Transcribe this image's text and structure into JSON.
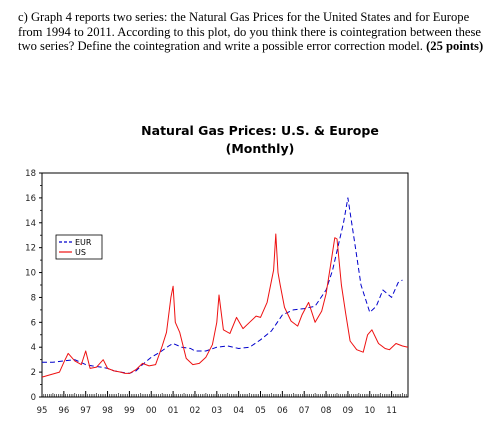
{
  "question": {
    "label": "c)",
    "text": "Graph 4 reports two series: the Natural Gas Prices for the United States and for Europe from 1994 to 2011. According to this plot, do you think there is cointegration between these two series? Define the cointegration and write a possible error correction model.",
    "points": "(25 points)"
  },
  "chart_data": {
    "type": "line",
    "title": "Natural Gas Prices: U.S. & Europe",
    "subtitle": "(Monthly)",
    "xlabel": "",
    "ylabel": "",
    "x_tick_labels": [
      "95",
      "96",
      "97",
      "98",
      "99",
      "00",
      "01",
      "02",
      "03",
      "04",
      "05",
      "06",
      "07",
      "08",
      "09",
      "10",
      "11"
    ],
    "y_tick_labels": [
      "0",
      "2",
      "4",
      "6",
      "8",
      "10",
      "12",
      "14",
      "16",
      "18"
    ],
    "ylim": [
      0,
      18
    ],
    "xlim": [
      1995.0,
      2011.75
    ],
    "grid": false,
    "legend": "upper-left",
    "series": [
      {
        "name": "EUR",
        "color": "#0000cc",
        "dash": "5,3",
        "x": [
          1995.0,
          1995.5,
          1996.0,
          1996.5,
          1997.0,
          1997.3,
          1997.7,
          1998.0,
          1998.3,
          1998.6,
          1999.0,
          1999.3,
          1999.6,
          2000.0,
          2000.4,
          2000.8,
          2001.0,
          2001.4,
          2001.8,
          2002.0,
          2002.5,
          2003.0,
          2003.5,
          2004.0,
          2004.5,
          2005.0,
          2005.5,
          2006.0,
          2006.5,
          2007.0,
          2007.5,
          2008.0,
          2008.3,
          2008.6,
          2008.8,
          2009.0,
          2009.3,
          2009.6,
          2010.0,
          2010.3,
          2010.6,
          2011.0,
          2011.3,
          2011.5
        ],
        "values": [
          2.8,
          2.8,
          2.9,
          3.0,
          2.6,
          2.5,
          2.4,
          2.3,
          2.1,
          2.0,
          1.9,
          2.1,
          2.6,
          3.2,
          3.6,
          4.1,
          4.3,
          4.0,
          3.9,
          3.7,
          3.7,
          4.0,
          4.1,
          3.9,
          4.0,
          4.6,
          5.3,
          6.6,
          7.0,
          7.1,
          7.3,
          8.6,
          10.2,
          12.5,
          14.0,
          16.0,
          12.5,
          9.0,
          6.8,
          7.3,
          8.6,
          8.0,
          9.2,
          9.4
        ]
      },
      {
        "name": "US",
        "color": "#ee1111",
        "dash": "",
        "x": [
          1995.0,
          1995.4,
          1995.8,
          1996.0,
          1996.2,
          1996.5,
          1996.8,
          1997.0,
          1997.2,
          1997.5,
          1997.8,
          1998.0,
          1998.3,
          1998.6,
          1998.8,
          1999.0,
          1999.3,
          1999.6,
          1999.9,
          2000.2,
          2000.5,
          2000.7,
          2000.9,
          2001.0,
          2001.1,
          2001.3,
          2001.6,
          2001.9,
          2002.2,
          2002.5,
          2002.8,
          2003.0,
          2003.1,
          2003.3,
          2003.6,
          2003.9,
          2004.2,
          2004.5,
          2004.8,
          2005.0,
          2005.3,
          2005.6,
          2005.7,
          2005.8,
          2005.9,
          2006.1,
          2006.4,
          2006.7,
          2006.9,
          2007.2,
          2007.5,
          2007.8,
          2008.0,
          2008.2,
          2008.4,
          2008.5,
          2008.7,
          2008.9,
          2009.1,
          2009.4,
          2009.7,
          2009.9,
          2010.1,
          2010.4,
          2010.7,
          2010.9,
          2011.2,
          2011.5,
          2011.75
        ],
        "values": [
          1.6,
          1.8,
          2.0,
          2.8,
          3.5,
          2.9,
          2.6,
          3.7,
          2.3,
          2.4,
          3.0,
          2.3,
          2.1,
          2.0,
          1.9,
          1.9,
          2.2,
          2.7,
          2.5,
          2.6,
          4.1,
          5.2,
          8.0,
          8.9,
          6.0,
          5.2,
          3.1,
          2.6,
          2.7,
          3.2,
          4.2,
          6.0,
          8.2,
          5.4,
          5.1,
          6.4,
          5.5,
          6.0,
          6.5,
          6.4,
          7.6,
          10.2,
          13.1,
          10.0,
          9.0,
          7.2,
          6.1,
          5.7,
          6.6,
          7.6,
          6.0,
          6.9,
          8.3,
          10.5,
          12.8,
          12.7,
          9.0,
          6.7,
          4.5,
          3.8,
          3.6,
          5.0,
          5.4,
          4.3,
          3.9,
          3.8,
          4.3,
          4.1,
          4.0
        ]
      }
    ]
  }
}
